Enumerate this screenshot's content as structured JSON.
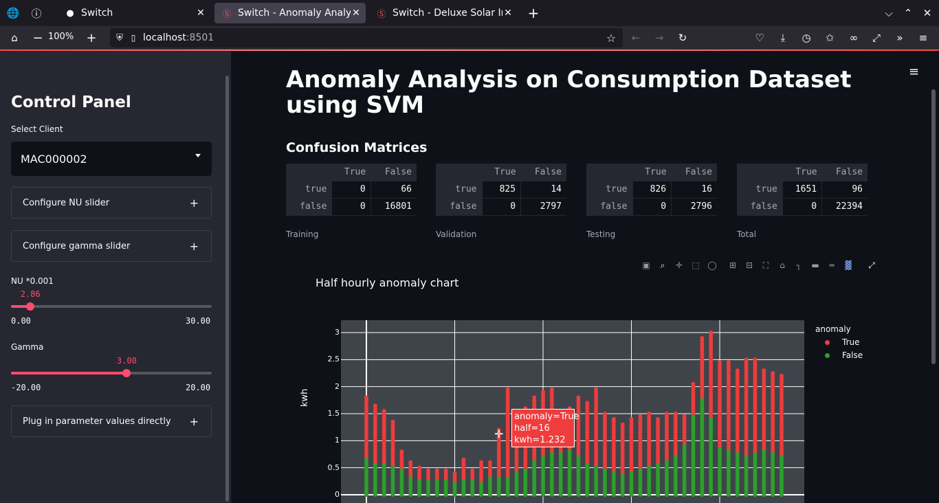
{
  "browser": {
    "tabs": [
      {
        "label": "Switch",
        "icon": "github-icon",
        "active": false
      },
      {
        "label": "Switch - Anomaly Analysis",
        "icon": "streamlit-icon",
        "active": true
      },
      {
        "label": "Switch - Deluxe Solar Insta",
        "icon": "streamlit-icon",
        "active": false
      }
    ],
    "zoom": "100%",
    "url_host": "localhost",
    "url_port": ":8501"
  },
  "sidebar": {
    "title": "Control Panel",
    "select_label": "Select Client",
    "select_value": "MAC000002",
    "expander_nu": "Configure NU slider",
    "expander_gamma": "Configure gamma slider",
    "expander_params": "Plug in parameter values directly",
    "nu": {
      "label": "NU *0.001",
      "value": "2.86",
      "min": "0.00",
      "max": "30.00",
      "fraction": 0.095
    },
    "gamma": {
      "label": "Gamma",
      "value": "3.00",
      "min": "-20.00",
      "max": "20.00",
      "fraction": 0.575
    }
  },
  "main": {
    "title": "Anomaly Analysis on Consumption Dataset using SVM",
    "section": "Confusion Matrices",
    "matrices": [
      {
        "caption": "Training",
        "header": [
          "True",
          "False"
        ],
        "rows": [
          [
            "true",
            "0",
            "66"
          ],
          [
            "false",
            "0",
            "16801"
          ]
        ]
      },
      {
        "caption": "Validation",
        "header": [
          "True",
          "False"
        ],
        "rows": [
          [
            "true",
            "825",
            "14"
          ],
          [
            "false",
            "0",
            "2797"
          ]
        ]
      },
      {
        "caption": "Testing",
        "header": [
          "True",
          "False"
        ],
        "rows": [
          [
            "true",
            "826",
            "16"
          ],
          [
            "false",
            "0",
            "2796"
          ]
        ]
      },
      {
        "caption": "Total",
        "header": [
          "True",
          "False"
        ],
        "rows": [
          [
            "true",
            "1651",
            "96"
          ],
          [
            "false",
            "0",
            "22394"
          ]
        ]
      }
    ]
  },
  "chart_data": {
    "type": "scatter",
    "title": "Half hourly anomaly chart",
    "ylabel": "kwh",
    "xlabel": "",
    "ylim": [
      0,
      3.1
    ],
    "yticks": [
      "0",
      "0.5",
      "1",
      "1.5",
      "2",
      "2.5",
      "3"
    ],
    "legend": {
      "title": "anomaly",
      "placement": "right",
      "entries": [
        {
          "name": "True",
          "color": "#ef3c3c"
        },
        {
          "name": "False",
          "color": "#2ca02c"
        }
      ]
    },
    "x": [
      1,
      2,
      3,
      4,
      5,
      6,
      7,
      8,
      9,
      10,
      11,
      12,
      13,
      14,
      15,
      16,
      17,
      18,
      19,
      20,
      21,
      22,
      23,
      24,
      25,
      26,
      27,
      28,
      29,
      30,
      31,
      32,
      33,
      34,
      35,
      36,
      37,
      38,
      39,
      40,
      41,
      42,
      43,
      44,
      45,
      46,
      47,
      48
    ],
    "series": [
      {
        "name": "True",
        "max_values": [
          1.8,
          1.65,
          1.55,
          1.35,
          0.8,
          0.6,
          0.5,
          0.45,
          0.45,
          0.45,
          0.4,
          0.65,
          0.45,
          0.6,
          0.6,
          1.23,
          1.95,
          1.5,
          1.6,
          1.8,
          1.9,
          1.95,
          1.4,
          1.6,
          1.8,
          1.7,
          1.95,
          1.5,
          1.4,
          1.3,
          1.4,
          1.45,
          1.5,
          1.4,
          1.5,
          1.5,
          1.45,
          2.05,
          2.9,
          3.0,
          2.45,
          2.45,
          2.3,
          2.5,
          2.5,
          2.3,
          2.25,
          2.2
        ]
      },
      {
        "name": "False",
        "max_values": [
          0.65,
          0.55,
          0.55,
          0.5,
          0.45,
          0.3,
          0.25,
          0.25,
          0.25,
          0.25,
          0.2,
          0.25,
          0.25,
          0.2,
          0.3,
          0.3,
          0.3,
          0.4,
          0.45,
          0.6,
          0.7,
          0.75,
          0.75,
          0.8,
          0.7,
          0.55,
          0.5,
          0.45,
          0.4,
          0.35,
          0.4,
          0.45,
          0.5,
          0.55,
          0.6,
          0.7,
          0.9,
          1.45,
          1.75,
          1.4,
          0.85,
          0.8,
          0.75,
          0.7,
          0.75,
          0.8,
          0.75,
          0.7
        ]
      }
    ],
    "tooltip": {
      "line1": "anomaly=True",
      "line2": "half=16",
      "line3": "kwh=1.232"
    }
  }
}
